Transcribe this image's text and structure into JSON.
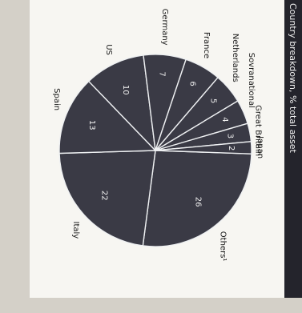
{
  "chart_data": {
    "type": "pie",
    "title": "Country breakdown, % total asset",
    "unit": "%",
    "slices": [
      {
        "label": "Others¹",
        "value": 26
      },
      {
        "label": "Italy",
        "value": 22
      },
      {
        "label": "Spain",
        "value": 13
      },
      {
        "label": "US",
        "value": 10
      },
      {
        "label": "Germany",
        "value": 7
      },
      {
        "label": "France",
        "value": 6
      },
      {
        "label": "Netherlands",
        "value": 5
      },
      {
        "label": "Sovranational",
        "value": 4
      },
      {
        "label": "Great Britain",
        "value": 3
      },
      {
        "label": "Japan",
        "value": 2
      }
    ],
    "colors": {
      "slice": "#3a3a45",
      "separator": "#eef0f2",
      "panel": "#f7f6f2",
      "paper": "#d4d0c8",
      "title_bar": "#24242c",
      "title_text": "#f2f2f2",
      "label_text": "#1a1a1a",
      "value_text": "#f0f0f0"
    }
  }
}
